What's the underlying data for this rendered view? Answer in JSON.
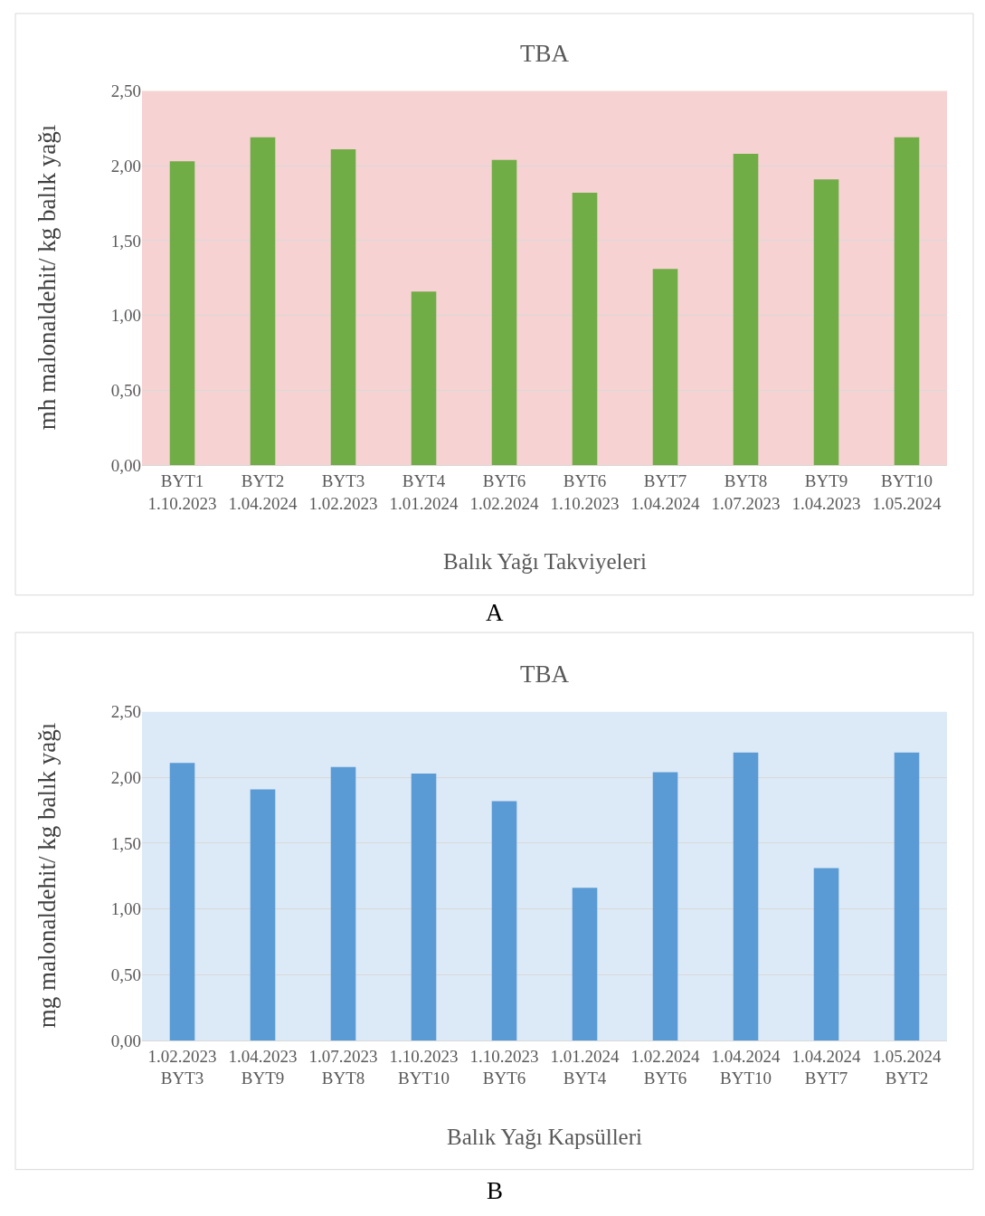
{
  "chart_data": [
    {
      "type": "bar",
      "title": "TBA",
      "xlabel": "Balık Yağı Takviyeleri",
      "ylabel": "mh malonaldehit/ kg balık yağı",
      "categories": [
        "BYT1\n1.10.2023",
        "BYT2\n1.04.2024",
        "BYT3\n1.02.2023",
        "BYT4\n1.01.2024",
        "BYT6\n1.02.2024",
        "BYT6\n1.10.2023",
        "BYT7\n1.04.2024",
        "BYT8\n1.07.2023",
        "BYT9\n1.04.2023",
        "BYT10\n1.05.2024"
      ],
      "values": [
        2.03,
        2.19,
        2.11,
        1.16,
        2.04,
        1.82,
        1.31,
        2.08,
        1.91,
        2.19
      ],
      "color": "#70ad47",
      "ylim": [
        0,
        2.5
      ],
      "yticks": [
        {
          "value": 0,
          "label": "0,00"
        },
        {
          "value": 0.5,
          "label": "0,50"
        },
        {
          "value": 1,
          "label": "1,00"
        },
        {
          "value": 1.5,
          "label": "1,50"
        },
        {
          "value": 2,
          "label": "2,00"
        },
        {
          "value": 2.5,
          "label": "2,50"
        }
      ],
      "grid": "y",
      "annotations": [
        "A"
      ]
    },
    {
      "type": "bar",
      "title": "TBA",
      "xlabel": "Balık Yağı Kapsülleri",
      "ylabel": "mg malonaldehit/ kg balık yağı",
      "categories": [
        "1.02.2023\nBYT3",
        "1.04.2023\nBYT9",
        "1.07.2023\nBYT8",
        "1.10.2023\nBYT10",
        "1.10.2023\nBYT6",
        "1.01.2024\nBYT4",
        "1.02.2024\nBYT6",
        "1.04.2024\nBYT10",
        "1.04.2024\nBYT7",
        "1.05.2024\nBYT2"
      ],
      "values": [
        2.11,
        1.91,
        2.08,
        2.03,
        1.82,
        1.16,
        2.04,
        2.19,
        1.31,
        2.19
      ],
      "color": "#5b9bd5",
      "ylim": [
        0,
        2.5
      ],
      "yticks": [
        {
          "value": 0,
          "label": "0,00"
        },
        {
          "value": 0.5,
          "label": "0,50"
        },
        {
          "value": 1,
          "label": "1,00"
        },
        {
          "value": 1.5,
          "label": "1,50"
        },
        {
          "value": 2,
          "label": "2,00"
        },
        {
          "value": 2.5,
          "label": "2,50"
        }
      ],
      "grid": "y",
      "annotations": [
        "B"
      ]
    }
  ]
}
